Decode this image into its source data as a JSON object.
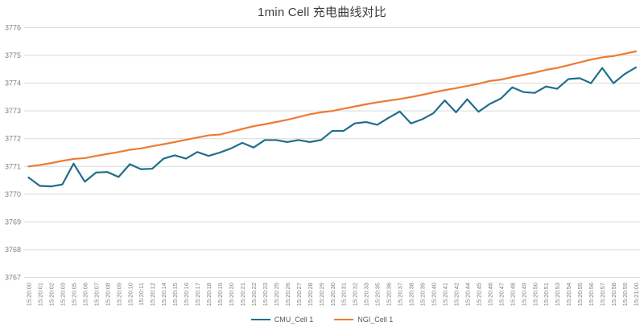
{
  "title": "1min Cell 充电曲线对比",
  "colors": {
    "cmu": "#1F6E8C",
    "ngi": "#EC7B32",
    "grid": "#D9D9D9",
    "tick_label": "#808080",
    "background": "#FFFFFF"
  },
  "legend": {
    "items": [
      {
        "label": "CMU_Cell 1",
        "color": "#1F6E8C"
      },
      {
        "label": "NGI_Cell 1",
        "color": "#EC7B32"
      }
    ]
  },
  "chart_data": {
    "type": "line",
    "title": "1min Cell 充电曲线对比",
    "xlabel": "",
    "ylabel": "",
    "ylim": [
      3767,
      3776
    ],
    "yticks": [
      3767,
      3768,
      3769,
      3770,
      3771,
      3772,
      3773,
      3774,
      3775,
      3776
    ],
    "grid": true,
    "legend_position": "bottom",
    "categories": [
      "15:20:00",
      "15:20:01",
      "15:20:02",
      "15:20:03",
      "15:20:05",
      "15:20:06",
      "15:20:07",
      "15:20:08",
      "15:20:09",
      "15:20:10",
      "15:20:11",
      "15:20:12",
      "15:20:14",
      "15:20:15",
      "15:20:16",
      "15:20:17",
      "15:20:18",
      "15:20:19",
      "15:20:20",
      "15:20:21",
      "15:20:22",
      "15:20:23",
      "15:20:25",
      "15:20:26",
      "15:20:27",
      "15:20:28",
      "15:20:29",
      "15:20:30",
      "15:20:31",
      "15:20:32",
      "15:20:33",
      "15:20:35",
      "15:20:36",
      "15:20:37",
      "15:20:38",
      "15:20:39",
      "15:20:40",
      "15:20:41",
      "15:20:42",
      "15:20:44",
      "15:20:45",
      "15:20:46",
      "15:20:47",
      "15:20:48",
      "15:20:49",
      "15:20:50",
      "15:20:51",
      "15:20:53",
      "15:20:54",
      "15:20:55",
      "15:20:56",
      "15:20:57",
      "15:20:58",
      "15:20:59",
      "15:21:00"
    ],
    "series": [
      {
        "name": "CMU_Cell 1",
        "color": "#1F6E8C",
        "values": [
          3770.6,
          3770.3,
          3770.28,
          3770.35,
          3771.1,
          3770.45,
          3770.78,
          3770.8,
          3770.62,
          3771.08,
          3770.9,
          3770.92,
          3771.28,
          3771.4,
          3771.28,
          3771.52,
          3771.38,
          3771.5,
          3771.65,
          3771.85,
          3771.68,
          3771.95,
          3771.95,
          3771.88,
          3771.95,
          3771.88,
          3771.95,
          3772.28,
          3772.28,
          3772.55,
          3772.6,
          3772.5,
          3772.75,
          3772.98,
          3772.55,
          3772.7,
          3772.92,
          3773.38,
          3772.95,
          3773.42,
          3772.97,
          3773.25,
          3773.45,
          3773.85,
          3773.68,
          3773.65,
          3773.88,
          3773.8,
          3774.15,
          3774.18,
          3774.0,
          3774.55,
          3774.0,
          3774.33,
          3774.57
        ]
      },
      {
        "name": "NGI_Cell 1",
        "color": "#EC7B32",
        "values": [
          3771.0,
          3771.05,
          3771.12,
          3771.2,
          3771.27,
          3771.3,
          3771.38,
          3771.45,
          3771.52,
          3771.6,
          3771.65,
          3771.73,
          3771.8,
          3771.88,
          3771.96,
          3772.04,
          3772.12,
          3772.15,
          3772.25,
          3772.35,
          3772.45,
          3772.52,
          3772.6,
          3772.68,
          3772.78,
          3772.88,
          3772.95,
          3773.0,
          3773.08,
          3773.16,
          3773.24,
          3773.31,
          3773.37,
          3773.43,
          3773.5,
          3773.58,
          3773.67,
          3773.75,
          3773.82,
          3773.9,
          3773.98,
          3774.08,
          3774.13,
          3774.22,
          3774.3,
          3774.38,
          3774.48,
          3774.55,
          3774.65,
          3774.75,
          3774.85,
          3774.93,
          3774.98,
          3775.06,
          3775.15
        ]
      }
    ]
  }
}
